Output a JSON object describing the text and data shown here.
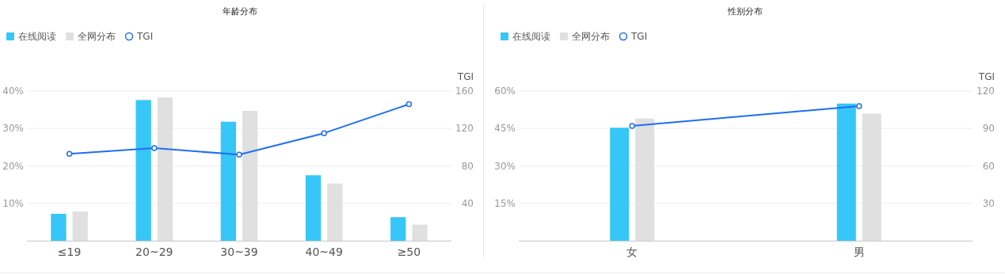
{
  "chart_data": [
    {
      "type": "bar",
      "title": "年龄分布",
      "y2label": "TGI",
      "categories": [
        "≤19",
        "20~29",
        "30~39",
        "40~49",
        "≥50"
      ],
      "series": [
        {
          "name": "在线阅读",
          "color": "#36c6f7",
          "values": [
            7.2,
            37.6,
            31.8,
            17.5,
            6.3
          ]
        },
        {
          "name": "全网分布",
          "color": "#e0e0e0",
          "values": [
            7.8,
            38.3,
            34.7,
            15.3,
            4.3
          ]
        },
        {
          "name": "TGI",
          "type": "line",
          "axis": "y2",
          "color": "#1e6ff0",
          "marker": "circle",
          "values": [
            93,
            99,
            92,
            115,
            146
          ]
        }
      ],
      "ylim": [
        0,
        40
      ],
      "yticks": [
        {
          "value": 0,
          "label": null
        },
        {
          "value": 10,
          "label": "10%"
        },
        {
          "value": 20,
          "label": "20%"
        },
        {
          "value": 30,
          "label": "30%"
        },
        {
          "value": 40,
          "label": "40%"
        }
      ],
      "y2lim": [
        0,
        160
      ],
      "y2ticks": [
        40,
        80,
        120,
        160
      ],
      "grid": "y",
      "legend": "top left"
    },
    {
      "type": "bar",
      "title": "性别分布",
      "y2label": "TGI",
      "categories": [
        "女",
        "男"
      ],
      "series": [
        {
          "name": "在线阅读",
          "color": "#36c6f7",
          "values": [
            45.3,
            55.0
          ]
        },
        {
          "name": "全网分布",
          "color": "#e0e0e0",
          "values": [
            49.0,
            51.0
          ]
        },
        {
          "name": "TGI",
          "type": "line",
          "axis": "y2",
          "color": "#1e6ff0",
          "marker": "circle",
          "values": [
            92,
            108
          ]
        }
      ],
      "ylim": [
        0,
        60
      ],
      "yticks": [
        {
          "value": 0,
          "label": null
        },
        {
          "value": 15,
          "label": "15%"
        },
        {
          "value": 30,
          "label": "30%"
        },
        {
          "value": 45,
          "label": "45%"
        },
        {
          "value": 60,
          "label": "60%"
        }
      ],
      "y2lim": [
        0,
        120
      ],
      "y2ticks": [
        30,
        60,
        90,
        120
      ],
      "grid": "y",
      "legend": "top left"
    }
  ]
}
